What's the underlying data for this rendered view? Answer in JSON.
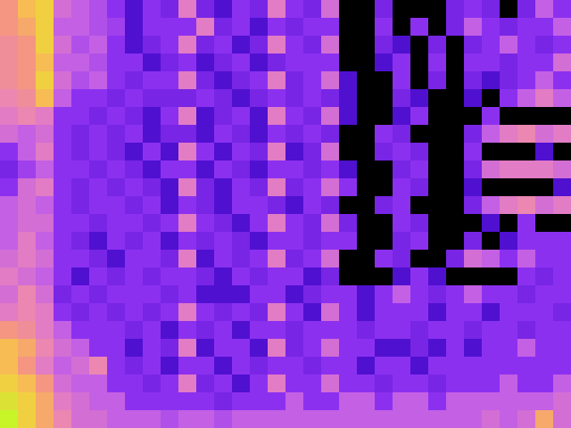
{
  "chart_data": {
    "type": "heatmap",
    "tick_labels": false,
    "zlim": [
      0,
      1
    ],
    "cells": [
      [
        0.75,
        0.85,
        0.9,
        0.55,
        0.5,
        0.45,
        0.35,
        0.2,
        0.35,
        0.3,
        0.6,
        0.3,
        0.2,
        0.35,
        0.3,
        0.6,
        0.35,
        0.3,
        0.55,
        0.0,
        0.0,
        0.3,
        0.0,
        0.0,
        0.0,
        0.3,
        0.35,
        0.3,
        0.0,
        0.3,
        0.5,
        0.35
      ],
      [
        0.75,
        0.8,
        0.9,
        0.5,
        0.5,
        0.45,
        0.4,
        0.2,
        0.35,
        0.35,
        0.35,
        0.6,
        0.3,
        0.35,
        0.2,
        0.35,
        0.3,
        0.35,
        0.35,
        0.0,
        0.0,
        0.35,
        0.0,
        0.35,
        0.0,
        0.3,
        0.5,
        0.35,
        0.3,
        0.35,
        0.35,
        0.5
      ],
      [
        0.7,
        0.75,
        0.9,
        0.55,
        0.45,
        0.5,
        0.35,
        0.2,
        0.3,
        0.35,
        0.6,
        0.3,
        0.35,
        0.2,
        0.3,
        0.6,
        0.35,
        0.3,
        0.55,
        0.0,
        0.0,
        0.3,
        0.2,
        0.0,
        0.3,
        0.0,
        0.3,
        0.35,
        0.5,
        0.35,
        0.3,
        0.35
      ],
      [
        0.7,
        0.75,
        0.85,
        0.5,
        0.5,
        0.45,
        0.35,
        0.35,
        0.2,
        0.3,
        0.35,
        0.2,
        0.3,
        0.35,
        0.2,
        0.3,
        0.35,
        0.35,
        0.35,
        0.0,
        0.0,
        0.2,
        0.35,
        0.0,
        0.35,
        0.0,
        0.35,
        0.35,
        0.3,
        0.35,
        0.35,
        0.55
      ],
      [
        0.7,
        0.75,
        0.9,
        0.55,
        0.45,
        0.5,
        0.35,
        0.3,
        0.35,
        0.35,
        0.6,
        0.3,
        0.2,
        0.3,
        0.35,
        0.6,
        0.3,
        0.35,
        0.55,
        0.2,
        0.0,
        0.0,
        0.35,
        0.0,
        0.3,
        0.0,
        0.3,
        0.2,
        0.3,
        0.35,
        0.5,
        0.35
      ],
      [
        0.65,
        0.7,
        0.85,
        0.5,
        0.35,
        0.35,
        0.3,
        0.35,
        0.3,
        0.3,
        0.3,
        0.35,
        0.3,
        0.2,
        0.3,
        0.35,
        0.3,
        0.35,
        0.3,
        0.2,
        0.0,
        0.0,
        0.3,
        0.2,
        0.0,
        0.0,
        0.2,
        0.0,
        0.35,
        0.5,
        0.6,
        0.5
      ],
      [
        0.6,
        0.65,
        0.6,
        0.35,
        0.35,
        0.3,
        0.35,
        0.3,
        0.2,
        0.35,
        0.6,
        0.2,
        0.3,
        0.35,
        0.2,
        0.6,
        0.35,
        0.3,
        0.55,
        0.2,
        0.0,
        0.0,
        0.2,
        0.35,
        0.0,
        0.0,
        0.0,
        0.35,
        0.0,
        0.0,
        0.0,
        0.0
      ],
      [
        0.55,
        0.5,
        0.55,
        0.35,
        0.3,
        0.35,
        0.3,
        0.35,
        0.2,
        0.3,
        0.3,
        0.2,
        0.35,
        0.3,
        0.2,
        0.35,
        0.3,
        0.35,
        0.3,
        0.0,
        0.0,
        0.35,
        0.3,
        0.0,
        0.0,
        0.0,
        0.3,
        0.5,
        0.6,
        0.65,
        0.55,
        0.6
      ],
      [
        0.35,
        0.5,
        0.6,
        0.35,
        0.3,
        0.35,
        0.3,
        0.2,
        0.35,
        0.2,
        0.6,
        0.35,
        0.2,
        0.35,
        0.3,
        0.6,
        0.2,
        0.3,
        0.55,
        0.0,
        0.0,
        0.3,
        0.35,
        0.3,
        0.0,
        0.0,
        0.35,
        0.0,
        0.0,
        0.0,
        0.2,
        0.0
      ],
      [
        0.3,
        0.4,
        0.5,
        0.35,
        0.35,
        0.3,
        0.35,
        0.3,
        0.2,
        0.35,
        0.35,
        0.2,
        0.35,
        0.3,
        0.2,
        0.35,
        0.35,
        0.3,
        0.35,
        0.2,
        0.0,
        0.0,
        0.3,
        0.35,
        0.0,
        0.0,
        0.3,
        0.55,
        0.6,
        0.6,
        0.6,
        0.55
      ],
      [
        0.35,
        0.55,
        0.6,
        0.35,
        0.3,
        0.35,
        0.3,
        0.35,
        0.3,
        0.2,
        0.6,
        0.3,
        0.2,
        0.35,
        0.3,
        0.6,
        0.3,
        0.35,
        0.55,
        0.35,
        0.0,
        0.0,
        0.35,
        0.3,
        0.0,
        0.0,
        0.2,
        0.0,
        0.0,
        0.0,
        0.0,
        0.2
      ],
      [
        0.5,
        0.55,
        0.5,
        0.35,
        0.3,
        0.35,
        0.35,
        0.3,
        0.35,
        0.2,
        0.35,
        0.3,
        0.2,
        0.35,
        0.35,
        0.3,
        0.2,
        0.35,
        0.3,
        0.0,
        0.0,
        0.3,
        0.35,
        0.0,
        0.0,
        0.0,
        0.3,
        0.5,
        0.6,
        0.65,
        0.55,
        0.6
      ],
      [
        0.5,
        0.55,
        0.55,
        0.35,
        0.35,
        0.3,
        0.35,
        0.35,
        0.3,
        0.35,
        0.6,
        0.35,
        0.3,
        0.2,
        0.35,
        0.6,
        0.35,
        0.3,
        0.55,
        0.3,
        0.0,
        0.0,
        0.35,
        0.3,
        0.0,
        0.0,
        0.0,
        0.2,
        0.0,
        0.35,
        0.0,
        0.0
      ],
      [
        0.5,
        0.6,
        0.5,
        0.35,
        0.3,
        0.2,
        0.35,
        0.3,
        0.35,
        0.2,
        0.35,
        0.3,
        0.35,
        0.3,
        0.2,
        0.35,
        0.35,
        0.3,
        0.35,
        0.35,
        0.0,
        0.0,
        0.3,
        0.35,
        0.0,
        0.0,
        0.3,
        0.0,
        0.2,
        0.35,
        0.35,
        0.35
      ],
      [
        0.55,
        0.6,
        0.55,
        0.35,
        0.35,
        0.3,
        0.2,
        0.35,
        0.35,
        0.3,
        0.6,
        0.2,
        0.35,
        0.3,
        0.35,
        0.6,
        0.3,
        0.35,
        0.55,
        0.0,
        0.0,
        0.35,
        0.3,
        0.0,
        0.0,
        0.3,
        0.55,
        0.5,
        0.35,
        0.5,
        0.35,
        0.35
      ],
      [
        0.6,
        0.55,
        0.5,
        0.35,
        0.2,
        0.35,
        0.3,
        0.35,
        0.3,
        0.35,
        0.35,
        0.3,
        0.2,
        0.35,
        0.3,
        0.35,
        0.35,
        0.2,
        0.3,
        0.0,
        0.0,
        0.0,
        0.2,
        0.35,
        0.2,
        0.0,
        0.0,
        0.0,
        0.0,
        0.35,
        0.3,
        0.35
      ],
      [
        0.55,
        0.65,
        0.55,
        0.3,
        0.35,
        0.3,
        0.35,
        0.35,
        0.35,
        0.3,
        0.35,
        0.2,
        0.2,
        0.2,
        0.35,
        0.35,
        0.2,
        0.3,
        0.35,
        0.35,
        0.2,
        0.35,
        0.5,
        0.35,
        0.3,
        0.35,
        0.5,
        0.35,
        0.35,
        0.3,
        0.35,
        0.35
      ],
      [
        0.6,
        0.65,
        0.6,
        0.35,
        0.3,
        0.35,
        0.3,
        0.35,
        0.3,
        0.35,
        0.6,
        0.35,
        0.3,
        0.35,
        0.3,
        0.6,
        0.35,
        0.2,
        0.55,
        0.35,
        0.2,
        0.35,
        0.35,
        0.35,
        0.2,
        0.35,
        0.35,
        0.2,
        0.35,
        0.35,
        0.35,
        0.3
      ],
      [
        0.75,
        0.7,
        0.6,
        0.5,
        0.35,
        0.35,
        0.35,
        0.3,
        0.35,
        0.2,
        0.35,
        0.3,
        0.35,
        0.2,
        0.35,
        0.35,
        0.3,
        0.35,
        0.35,
        0.35,
        0.3,
        0.35,
        0.35,
        0.3,
        0.35,
        0.35,
        0.3,
        0.35,
        0.35,
        0.3,
        0.35,
        0.35
      ],
      [
        0.85,
        0.8,
        0.65,
        0.55,
        0.5,
        0.35,
        0.35,
        0.2,
        0.35,
        0.3,
        0.6,
        0.2,
        0.35,
        0.35,
        0.2,
        0.6,
        0.3,
        0.35,
        0.55,
        0.35,
        0.35,
        0.2,
        0.2,
        0.3,
        0.2,
        0.35,
        0.2,
        0.35,
        0.35,
        0.5,
        0.35,
        0.35
      ],
      [
        0.85,
        0.75,
        0.6,
        0.5,
        0.55,
        0.65,
        0.35,
        0.3,
        0.35,
        0.2,
        0.35,
        0.35,
        0.2,
        0.35,
        0.3,
        0.35,
        0.35,
        0.3,
        0.35,
        0.35,
        0.2,
        0.35,
        0.35,
        0.2,
        0.35,
        0.35,
        0.35,
        0.35,
        0.35,
        0.35,
        0.35,
        0.35
      ],
      [
        0.9,
        0.85,
        0.75,
        0.55,
        0.5,
        0.5,
        0.35,
        0.35,
        0.3,
        0.35,
        0.6,
        0.3,
        0.35,
        0.2,
        0.35,
        0.6,
        0.35,
        0.35,
        0.55,
        0.35,
        0.35,
        0.3,
        0.35,
        0.35,
        0.3,
        0.35,
        0.35,
        0.35,
        0.5,
        0.35,
        0.35,
        0.5
      ],
      [
        0.95,
        0.9,
        0.8,
        0.6,
        0.55,
        0.5,
        0.5,
        0.35,
        0.35,
        0.35,
        0.35,
        0.35,
        0.3,
        0.35,
        0.35,
        0.35,
        0.5,
        0.35,
        0.35,
        0.5,
        0.5,
        0.35,
        0.5,
        0.5,
        0.35,
        0.5,
        0.5,
        0.5,
        0.5,
        0.5,
        0.5,
        0.55
      ],
      [
        1.0,
        0.9,
        0.8,
        0.65,
        0.55,
        0.55,
        0.5,
        0.5,
        0.5,
        0.45,
        0.5,
        0.5,
        0.45,
        0.5,
        0.5,
        0.5,
        0.5,
        0.5,
        0.5,
        0.5,
        0.5,
        0.5,
        0.5,
        0.5,
        0.5,
        0.5,
        0.5,
        0.55,
        0.5,
        0.55,
        0.8,
        0.55
      ]
    ]
  }
}
